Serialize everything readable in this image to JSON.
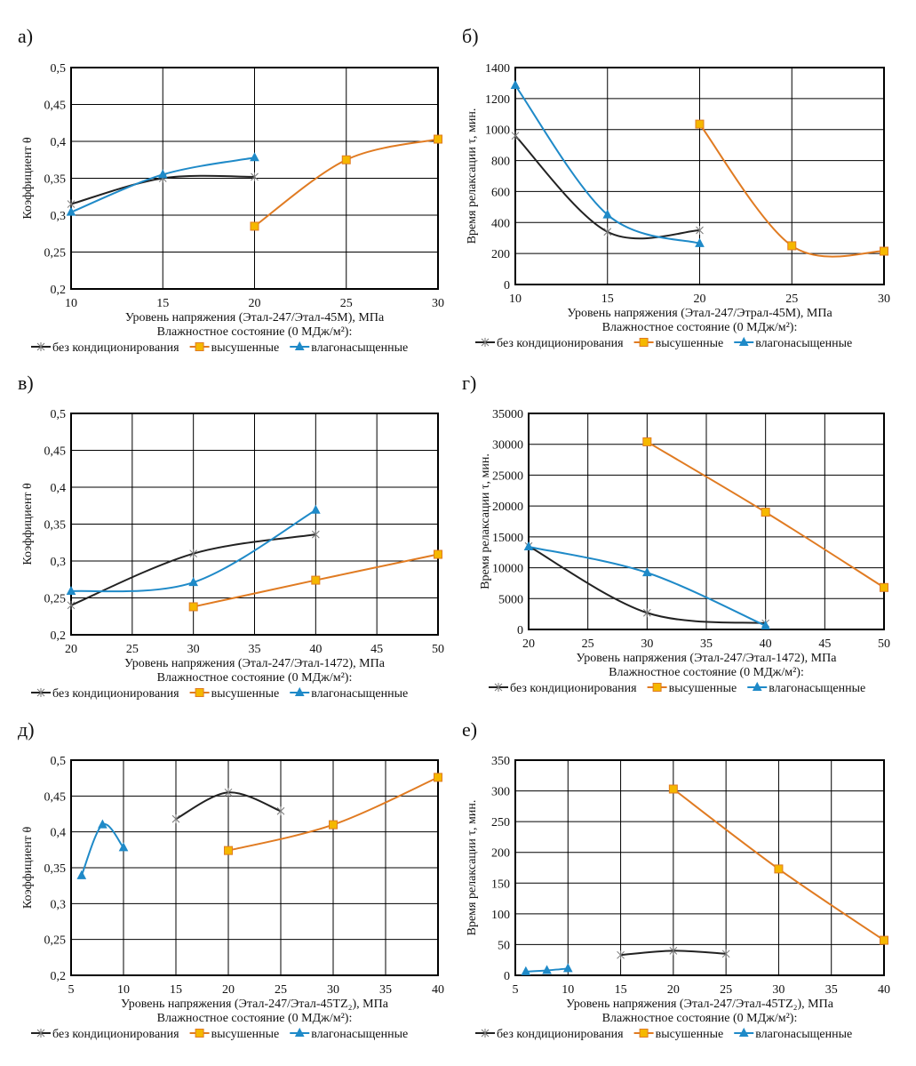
{
  "series_names": [
    "без кондиционирования",
    "высушенные",
    "влагонасыщенные"
  ],
  "series_colors": [
    "#222222",
    "#e07b22",
    "#1f8ac8"
  ],
  "marker_fill": "#f5b800",
  "legend_title": "Влажностное состояние (0 МДж/м²):",
  "chart_data": [
    {
      "panel_label": "а)",
      "type": "line",
      "smooth": true,
      "xlabel": "Уровень напряжения (Этал-247/Этал-45М), МПа",
      "ylabel": "Коэффициент  θ",
      "xlim": [
        10,
        30
      ],
      "ylim": [
        0.2,
        0.5
      ],
      "xticks": [
        "10",
        "15",
        "20",
        "25",
        "30"
      ],
      "yticks": [
        "0,2",
        "0,25",
        "0,3",
        "0,35",
        "0,4",
        "0,45",
        "0,5"
      ],
      "grid": true,
      "legend": "bottom",
      "series": [
        {
          "name": "без кондиционирования",
          "x": [
            10,
            15,
            20
          ],
          "y": [
            0.315,
            0.35,
            0.352
          ]
        },
        {
          "name": "высушенные",
          "x": [
            20,
            25,
            30
          ],
          "y": [
            0.285,
            0.375,
            0.403
          ]
        },
        {
          "name": "влагонасыщенные",
          "x": [
            10,
            15,
            20
          ],
          "y": [
            0.304,
            0.355,
            0.378
          ]
        }
      ]
    },
    {
      "panel_label": "б)",
      "type": "line",
      "smooth": true,
      "xlabel": "Уровень напряжения (Этал-247/Этрал-45М), МПа",
      "ylabel": "Время релаксации τ, мин.",
      "xlim": [
        10,
        30
      ],
      "ylim": [
        0,
        1400
      ],
      "xticks": [
        "10",
        "15",
        "20",
        "25",
        "30"
      ],
      "yticks": [
        "0",
        "200",
        "400",
        "600",
        "800",
        "1000",
        "1200",
        "1400"
      ],
      "grid": true,
      "legend": "bottom",
      "series": [
        {
          "name": "без кондиционирования",
          "x": [
            10,
            15,
            20
          ],
          "y": [
            960,
            340,
            350
          ]
        },
        {
          "name": "высушенные",
          "x": [
            20,
            25,
            30
          ],
          "y": [
            1035,
            250,
            215
          ]
        },
        {
          "name": "влагонасыщенные",
          "x": [
            10,
            15,
            20
          ],
          "y": [
            1285,
            450,
            265
          ]
        }
      ]
    },
    {
      "panel_label": "в)",
      "type": "line",
      "smooth": true,
      "xlabel": "Уровень напряжения (Этал-247/Этал-1472), МПа",
      "ylabel": "Коэффициент  θ",
      "xlim": [
        20,
        50
      ],
      "ylim": [
        0.2,
        0.5
      ],
      "xticks": [
        "20",
        "25",
        "30",
        "35",
        "40",
        "45",
        "50"
      ],
      "yticks": [
        "0,2",
        "0,25",
        "0,3",
        "0,35",
        "0,4",
        "0,45",
        "0,5"
      ],
      "grid": true,
      "legend": "bottom",
      "series": [
        {
          "name": "без кондиционирования",
          "x": [
            20,
            30,
            40
          ],
          "y": [
            0.24,
            0.31,
            0.336
          ]
        },
        {
          "name": "высушенные",
          "x": [
            30,
            40,
            50
          ],
          "y": [
            0.238,
            0.274,
            0.309
          ]
        },
        {
          "name": "влагонасыщенные",
          "x": [
            20,
            30,
            40
          ],
          "y": [
            0.259,
            0.271,
            0.369
          ]
        }
      ]
    },
    {
      "panel_label": "г)",
      "type": "line",
      "smooth": true,
      "xlabel": "Уровень напряжения (Этал-247/Этал-1472), МПа",
      "ylabel": "Время релаксации τ, мин.",
      "xlim": [
        20,
        50
      ],
      "ylim": [
        0,
        35000
      ],
      "xticks": [
        "20",
        "25",
        "30",
        "35",
        "40",
        "45",
        "50"
      ],
      "yticks": [
        "0",
        "5000",
        "10000",
        "15000",
        "20000",
        "25000",
        "30000",
        "35000"
      ],
      "grid": true,
      "legend": "bottom",
      "series": [
        {
          "name": "без кондиционирования",
          "x": [
            20,
            30,
            40
          ],
          "y": [
            13500,
            2700,
            1000
          ]
        },
        {
          "name": "высушенные",
          "x": [
            30,
            40,
            50
          ],
          "y": [
            30400,
            19000,
            6800
          ]
        },
        {
          "name": "влагонасыщенные",
          "x": [
            20,
            30,
            40
          ],
          "y": [
            13400,
            9200,
            600
          ]
        }
      ]
    },
    {
      "panel_label": "д)",
      "type": "line",
      "smooth": true,
      "xlabel": "Уровень напряжения (Этал-247/Этал-45TZ₂), МПа",
      "ylabel": "Коэффициент  θ",
      "xlim": [
        5,
        40
      ],
      "ylim": [
        0.2,
        0.5
      ],
      "xticks": [
        "5",
        "10",
        "15",
        "20",
        "25",
        "30",
        "35",
        "40"
      ],
      "yticks": [
        "0,2",
        "0,25",
        "0,3",
        "0,35",
        "0,4",
        "0,45",
        "0,5"
      ],
      "grid": true,
      "legend": "bottom",
      "series": [
        {
          "name": "без кондиционирования",
          "x": [
            15,
            20,
            25
          ],
          "y": [
            0.418,
            0.455,
            0.429
          ]
        },
        {
          "name": "высушенные",
          "x": [
            20,
            30,
            40
          ],
          "y": [
            0.374,
            0.41,
            0.476
          ]
        },
        {
          "name": "влагонасыщенные",
          "x": [
            6,
            8,
            10
          ],
          "y": [
            0.339,
            0.41,
            0.378
          ]
        }
      ]
    },
    {
      "panel_label": "е)",
      "type": "line",
      "smooth": true,
      "xlabel": "Уровень напряжения (Этал-247/Этал-45TZ₂), МПа",
      "ylabel": "Время релаксации τ, мин.",
      "xlim": [
        5,
        40
      ],
      "ylim": [
        0,
        350
      ],
      "xticks": [
        "5",
        "10",
        "15",
        "20",
        "25",
        "30",
        "35",
        "40"
      ],
      "yticks": [
        "0",
        "50",
        "100",
        "150",
        "200",
        "250",
        "300",
        "350"
      ],
      "grid": true,
      "legend": "bottom",
      "series": [
        {
          "name": "без кондиционирования",
          "x": [
            15,
            20,
            25
          ],
          "y": [
            33,
            40,
            35
          ]
        },
        {
          "name": "высушенные",
          "x": [
            20,
            30,
            40
          ],
          "y": [
            303,
            173,
            57
          ]
        },
        {
          "name": "влагонасыщенные",
          "x": [
            6,
            8,
            10
          ],
          "y": [
            6,
            8,
            11
          ]
        }
      ]
    }
  ]
}
